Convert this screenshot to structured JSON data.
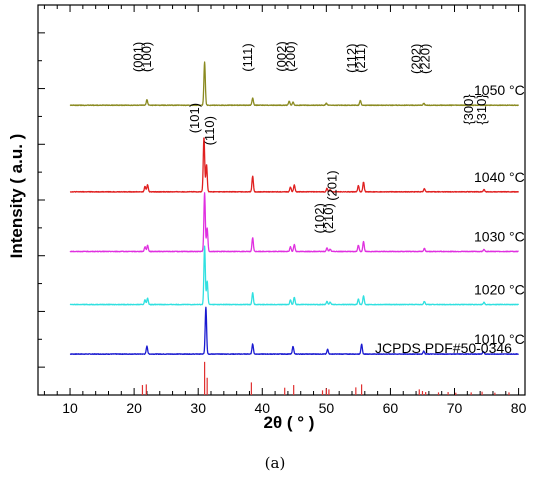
{
  "chart_data": {
    "type": "line",
    "xlabel": "2θ ( ° )",
    "ylabel": "Intensity ( a.u. )",
    "xlim": [
      5,
      81
    ],
    "xticks": [
      10,
      20,
      30,
      40,
      50,
      60,
      70,
      80
    ],
    "yticks_labeled": false,
    "grid": false,
    "caption": "(a)",
    "reference": {
      "label": "JCPDS PDF#50-0346",
      "color": "#e03030",
      "peaks": [
        {
          "x": 21.3,
          "h": 0.3
        },
        {
          "x": 21.9,
          "h": 0.32
        },
        {
          "x": 31.0,
          "h": 1.0
        },
        {
          "x": 31.4,
          "h": 0.52
        },
        {
          "x": 38.3,
          "h": 0.38
        },
        {
          "x": 43.5,
          "h": 0.22
        },
        {
          "x": 44.9,
          "h": 0.3
        },
        {
          "x": 49.4,
          "h": 0.14
        },
        {
          "x": 50.0,
          "h": 0.2
        },
        {
          "x": 50.4,
          "h": 0.17
        },
        {
          "x": 54.6,
          "h": 0.23
        },
        {
          "x": 55.5,
          "h": 0.32
        },
        {
          "x": 64.5,
          "h": 0.17
        },
        {
          "x": 65.0,
          "h": 0.12
        },
        {
          "x": 65.5,
          "h": 0.09
        },
        {
          "x": 67.5,
          "h": 0.08
        },
        {
          "x": 69.0,
          "h": 0.09
        },
        {
          "x": 70.2,
          "h": 0.07
        },
        {
          "x": 72.6,
          "h": 0.08
        },
        {
          "x": 74.3,
          "h": 0.1
        },
        {
          "x": 76.3,
          "h": 0.07
        },
        {
          "x": 78.5,
          "h": 0.08
        }
      ]
    },
    "series": [
      {
        "name": "1010 °C",
        "color": "#1a1ad0",
        "baseline": 0.105,
        "peaks": [
          {
            "x": 22.0,
            "h": 0.02
          },
          {
            "x": 31.2,
            "h": 0.12
          },
          {
            "x": 38.5,
            "h": 0.026
          },
          {
            "x": 44.8,
            "h": 0.02
          },
          {
            "x": 50.2,
            "h": 0.012
          },
          {
            "x": 55.5,
            "h": 0.025
          },
          {
            "x": 65.2,
            "h": 0.008
          },
          {
            "x": 74.5,
            "h": 0.006
          }
        ]
      },
      {
        "name": "1020 °C",
        "color": "#30e0e0",
        "baseline": 0.232,
        "peaks": [
          {
            "x": 21.7,
            "h": 0.012
          },
          {
            "x": 22.1,
            "h": 0.016
          },
          {
            "x": 31.0,
            "h": 0.15
          },
          {
            "x": 31.4,
            "h": 0.06
          },
          {
            "x": 38.5,
            "h": 0.03
          },
          {
            "x": 44.4,
            "h": 0.012
          },
          {
            "x": 45.0,
            "h": 0.018
          },
          {
            "x": 50.1,
            "h": 0.008
          },
          {
            "x": 50.6,
            "h": 0.006
          },
          {
            "x": 55.0,
            "h": 0.014
          },
          {
            "x": 55.8,
            "h": 0.022
          },
          {
            "x": 65.3,
            "h": 0.008
          },
          {
            "x": 74.6,
            "h": 0.006
          }
        ]
      },
      {
        "name": "1030 °C",
        "color": "#e030e0",
        "baseline": 0.368,
        "peaks": [
          {
            "x": 21.7,
            "h": 0.012
          },
          {
            "x": 22.1,
            "h": 0.016
          },
          {
            "x": 31.0,
            "h": 0.15
          },
          {
            "x": 31.4,
            "h": 0.06
          },
          {
            "x": 38.5,
            "h": 0.035
          },
          {
            "x": 44.4,
            "h": 0.012
          },
          {
            "x": 45.0,
            "h": 0.018
          },
          {
            "x": 50.1,
            "h": 0.009
          },
          {
            "x": 50.6,
            "h": 0.006
          },
          {
            "x": 55.0,
            "h": 0.016
          },
          {
            "x": 55.8,
            "h": 0.025
          },
          {
            "x": 65.3,
            "h": 0.008
          },
          {
            "x": 74.6,
            "h": 0.006
          }
        ]
      },
      {
        "name": "1040 °C",
        "color": "#e02020",
        "baseline": 0.521,
        "peaks": [
          {
            "x": 21.7,
            "h": 0.014
          },
          {
            "x": 22.1,
            "h": 0.018
          },
          {
            "x": 30.9,
            "h": 0.14
          },
          {
            "x": 31.3,
            "h": 0.07
          },
          {
            "x": 38.5,
            "h": 0.04
          },
          {
            "x": 44.4,
            "h": 0.012
          },
          {
            "x": 45.0,
            "h": 0.018
          },
          {
            "x": 50.1,
            "h": 0.009
          },
          {
            "x": 50.6,
            "h": 0.006
          },
          {
            "x": 55.0,
            "h": 0.016
          },
          {
            "x": 55.8,
            "h": 0.025
          },
          {
            "x": 65.3,
            "h": 0.008
          },
          {
            "x": 74.6,
            "h": 0.006
          }
        ]
      },
      {
        "name": "1050 °C",
        "color": "#8a8a20",
        "baseline": 0.743,
        "peaks": [
          {
            "x": 22.0,
            "h": 0.014
          },
          {
            "x": 31.0,
            "h": 0.11
          },
          {
            "x": 38.5,
            "h": 0.018
          },
          {
            "x": 44.2,
            "h": 0.01
          },
          {
            "x": 44.8,
            "h": 0.008
          },
          {
            "x": 50.0,
            "h": 0.005
          },
          {
            "x": 55.3,
            "h": 0.012
          },
          {
            "x": 65.2,
            "h": 0.005
          }
        ]
      }
    ],
    "annotations": [
      {
        "text": "(001)",
        "x": 21.3,
        "y": 0.828,
        "rot": -90
      },
      {
        "text": "(100)",
        "x": 22.6,
        "y": 0.828,
        "rot": -90
      },
      {
        "text": "(111)",
        "x": 38.4,
        "y": 0.829,
        "rot": -90
      },
      {
        "text": "(002)",
        "x": 43.7,
        "y": 0.829,
        "rot": -90
      },
      {
        "text": "(200)",
        "x": 45.1,
        "y": 0.829,
        "rot": -90
      },
      {
        "text": "(112)",
        "x": 54.6,
        "y": 0.826,
        "rot": -90
      },
      {
        "text": "(211)",
        "x": 56.0,
        "y": 0.826,
        "rot": -90
      },
      {
        "text": "(202)",
        "x": 64.7,
        "y": 0.823,
        "rot": -90
      },
      {
        "text": "(220)",
        "x": 66.1,
        "y": 0.823,
        "rot": -90
      },
      {
        "text": "{300}",
        "x": 72.9,
        "y": 0.693,
        "rot": -90
      },
      {
        "text": "{310}",
        "x": 74.9,
        "y": 0.693,
        "rot": -90
      },
      {
        "text": "(101)",
        "x": 30.1,
        "y": 0.671,
        "rot": -90
      },
      {
        "text": "(110)",
        "x": 32.5,
        "y": 0.64,
        "rot": -90
      },
      {
        "text": "(201)",
        "x": 51.6,
        "y": 0.498,
        "rot": -90
      },
      {
        "text": "(102)",
        "x": 49.6,
        "y": 0.414,
        "rot": -90
      },
      {
        "text": "(210)",
        "x": 51.0,
        "y": 0.414,
        "rot": -90
      }
    ]
  }
}
